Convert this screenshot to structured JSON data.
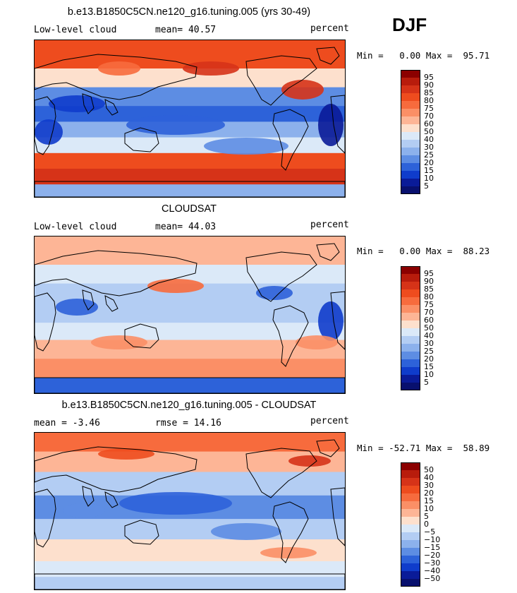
{
  "season": "DJF",
  "panels": [
    {
      "title": "b.e13.B1850C5CN.ne120_g16.tuning.005 (yrs 30-49)",
      "left": "Low-level cloud",
      "mid": "mean=  40.57",
      "right": "percent",
      "minmax": "Min =   0.00 Max =  95.71",
      "colorbar": [
        "95",
        "90",
        "85",
        "80",
        "75",
        "70",
        "60",
        "50",
        "40",
        "30",
        "25",
        "20",
        "15",
        "10",
        "5"
      ],
      "colors": [
        "#8b0000",
        "#b81c0c",
        "#d63318",
        "#ee4c1e",
        "#f76b3d",
        "#fb8f66",
        "#fdb596",
        "#fde0cd",
        "#dbe9f8",
        "#b3cdf3",
        "#8cb1ec",
        "#5d8de3",
        "#2d62d9",
        "#0f3ccb",
        "#0a1b98",
        "#08106e"
      ]
    },
    {
      "title": "CLOUDSAT",
      "left": "Low-level cloud",
      "mid": "mean=  44.03",
      "right": "percent",
      "minmax": "Min =   0.00 Max =  88.23",
      "colorbar": [
        "95",
        "90",
        "85",
        "80",
        "75",
        "70",
        "60",
        "50",
        "40",
        "30",
        "25",
        "20",
        "15",
        "10",
        "5"
      ],
      "colors": [
        "#8b0000",
        "#b81c0c",
        "#d63318",
        "#ee4c1e",
        "#f76b3d",
        "#fb8f66",
        "#fdb596",
        "#fde0cd",
        "#dbe9f8",
        "#b3cdf3",
        "#8cb1ec",
        "#5d8de3",
        "#2d62d9",
        "#0f3ccb",
        "#0a1b98",
        "#08106e"
      ]
    },
    {
      "title": "b.e13.B1850C5CN.ne120_g16.tuning.005 - CLOUDSAT",
      "left": "mean =   -3.46",
      "mid": "rmse =  14.16",
      "right": "percent",
      "minmax": "Min = -52.71 Max =  58.89",
      "colorbar": [
        "50",
        "40",
        "30",
        "20",
        "15",
        "10",
        "5",
        "0",
        "−5",
        "−10",
        "−15",
        "−20",
        "−30",
        "−40",
        "−50"
      ],
      "colors": [
        "#8b0000",
        "#b81c0c",
        "#d63318",
        "#ee4c1e",
        "#f76b3d",
        "#fb8f66",
        "#fdb596",
        "#fde0cd",
        "#dbe9f8",
        "#b3cdf3",
        "#8cb1ec",
        "#5d8de3",
        "#2d62d9",
        "#0f3ccb",
        "#0a1b98",
        "#08106e"
      ]
    }
  ]
}
